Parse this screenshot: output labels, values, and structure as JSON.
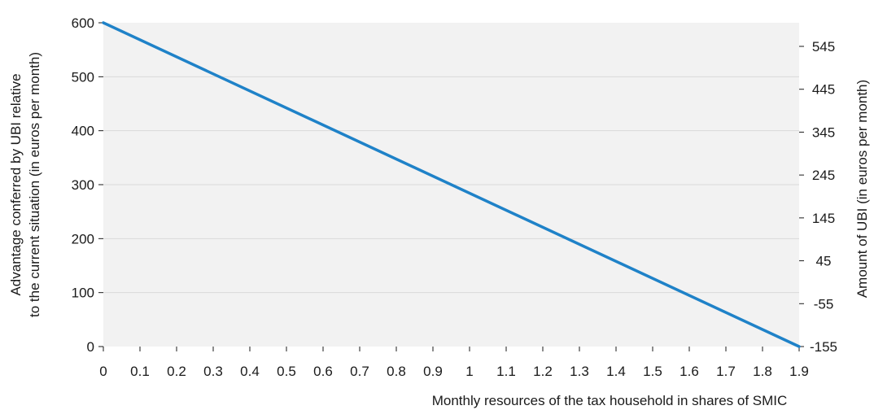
{
  "chart_data": {
    "type": "line",
    "title": "",
    "xlabel": "Monthly resources of the tax household in shares of SMIC",
    "ylabel_left": [
      "Advantage conferred by UBI relative",
      "to the current situation (in euros per month)"
    ],
    "ylabel_right": "Amount of UBI (in euros per month)",
    "x_ticks": [
      "0",
      "0.1",
      "0.2",
      "0.3",
      "0.4",
      "0.5",
      "0.6",
      "0.7",
      "0.8",
      "0.9",
      "1",
      "1.1",
      "1.2",
      "1.3",
      "1.4",
      "1.5",
      "1.6",
      "1.7",
      "1.8",
      "1.9"
    ],
    "xlim": [
      0,
      1.9
    ],
    "y_left_ticks": [
      "0",
      "100",
      "200",
      "300",
      "400",
      "500",
      "600"
    ],
    "ylim_left": [
      0,
      600
    ],
    "y_right_ticks": [
      "-155",
      "-55",
      "45",
      "145",
      "245",
      "345",
      "445",
      "545"
    ],
    "ylim_right": [
      -155,
      600
    ],
    "grid": true,
    "series": [
      {
        "color": "#1f82c8",
        "x": [
          0,
          1.9
        ],
        "y": [
          600,
          0
        ]
      }
    ]
  }
}
